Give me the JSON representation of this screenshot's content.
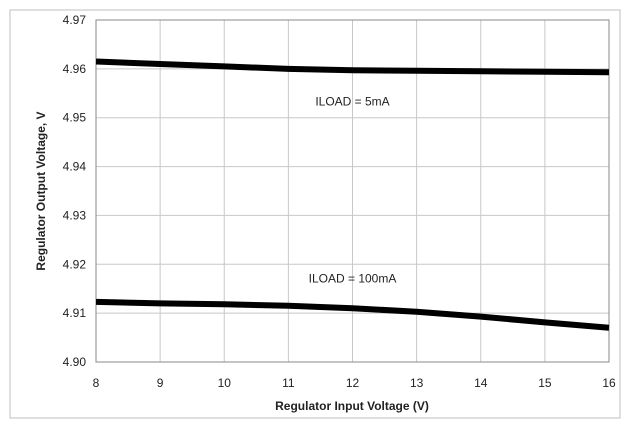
{
  "chart_data": {
    "type": "line",
    "title": "",
    "xlabel": "Regulator Input Voltage (V)",
    "ylabel": "Regulator Output Voltage, V",
    "xlim": [
      8,
      16
    ],
    "ylim": [
      4.9,
      4.97
    ],
    "x_ticks": [
      "8",
      "9",
      "10",
      "11",
      "12",
      "13",
      "14",
      "15",
      "16"
    ],
    "y_ticks": [
      "4.90",
      "4.91",
      "4.92",
      "4.93",
      "4.94",
      "4.95",
      "4.96",
      "4.97"
    ],
    "grid": true,
    "series": [
      {
        "name": "ILOAD = 5mA",
        "x": [
          8,
          9,
          10,
          11,
          12,
          13,
          14,
          15,
          16
        ],
        "y": [
          4.9615,
          4.961,
          4.9605,
          4.96,
          4.9597,
          4.9596,
          4.9595,
          4.9594,
          4.9593
        ],
        "color": "#000000"
      },
      {
        "name": "ILOAD = 100mA",
        "x": [
          8,
          9,
          10,
          11,
          12,
          13,
          14,
          15,
          16
        ],
        "y": [
          4.9123,
          4.912,
          4.9118,
          4.9115,
          4.911,
          4.9103,
          4.9093,
          4.9081,
          4.907
        ],
        "color": "#000000"
      }
    ]
  }
}
